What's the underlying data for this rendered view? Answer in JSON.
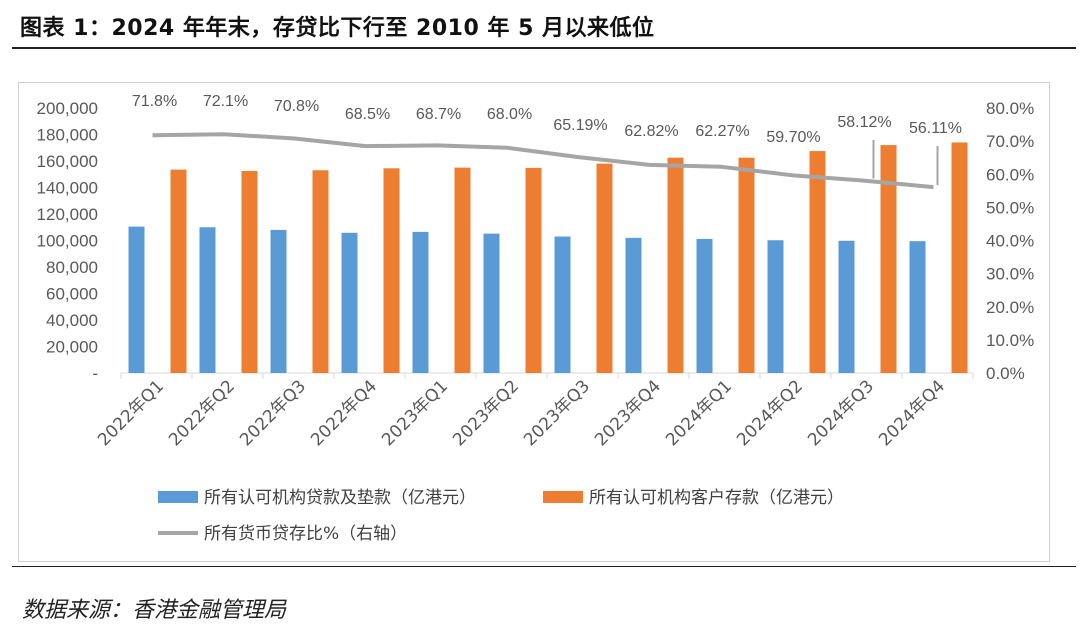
{
  "page": {
    "title": "图表 1：2024 年年末，存贷比下行至 2010 年 5 月以来低位",
    "source": "数据来源：香港金融管理局"
  },
  "chart_data": {
    "type": "bar",
    "categories": [
      "2022年Q1",
      "2022年Q2",
      "2022年Q3",
      "2022年Q4",
      "2023年Q1",
      "2023年Q2",
      "2023年Q3",
      "2023年Q4",
      "2024年Q1",
      "2024年Q2",
      "2024年Q3",
      "2024年Q4"
    ],
    "series": [
      {
        "name": "所有认可机构贷款及垫款（亿港元）",
        "type": "bar",
        "axis": "left",
        "color": "#5b9bd5",
        "values": [
          110500,
          110000,
          108000,
          105800,
          106500,
          105200,
          103000,
          102000,
          101200,
          100200,
          99800,
          99500
        ]
      },
      {
        "name": "所有认可机构客户存款（亿港元）",
        "type": "bar",
        "axis": "left",
        "color": "#ed7d31",
        "values": [
          153500,
          152500,
          153000,
          154500,
          155000,
          154800,
          158000,
          162500,
          162500,
          167500,
          172000,
          174000
        ]
      },
      {
        "name": "所有货币贷存比%（右轴）",
        "type": "line",
        "axis": "right",
        "color": "#a5a5a5",
        "values": [
          71.8,
          72.1,
          70.8,
          68.5,
          68.7,
          68.0,
          65.19,
          62.82,
          62.27,
          59.7,
          58.12,
          56.11
        ],
        "labels": [
          "71.8%",
          "72.1%",
          "70.8%",
          "68.5%",
          "68.7%",
          "68.0%",
          "65.19%",
          "62.82%",
          "62.27%",
          "59.70%",
          "58.12%",
          "56.11%"
        ]
      }
    ],
    "y_left": {
      "min": 0,
      "max": 200000,
      "step": 20000,
      "tick_labels": [
        "-",
        "20,000",
        "40,000",
        "60,000",
        "80,000",
        "100,000",
        "120,000",
        "140,000",
        "160,000",
        "180,000",
        "200,000"
      ]
    },
    "y_right": {
      "min": 0,
      "max": 80,
      "step": 10,
      "tick_labels": [
        "0.0%",
        "10.0%",
        "20.0%",
        "30.0%",
        "40.0%",
        "50.0%",
        "60.0%",
        "70.0%",
        "80.0%"
      ]
    },
    "legend_position": "bottom",
    "grid": false
  }
}
